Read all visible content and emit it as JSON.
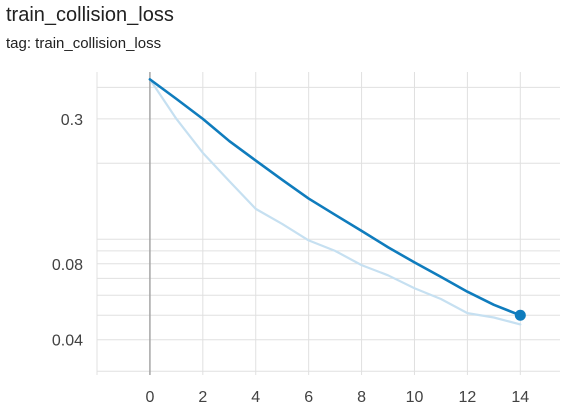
{
  "card": {
    "title": "train_collision_loss",
    "tag_text": "tag: train_collision_loss"
  },
  "chart_data": {
    "type": "line",
    "title": "train_collision_loss",
    "xlabel": "",
    "ylabel": "",
    "y_scale": "log",
    "xlim": [
      -2,
      15.5
    ],
    "ylim": [
      0.029,
      0.46
    ],
    "x_ticks": [
      0,
      2,
      4,
      6,
      8,
      10,
      12,
      14
    ],
    "y_tick_labels": [
      {
        "value": 0.3,
        "label": "0.3"
      },
      {
        "value": 0.08,
        "label": "0.08"
      },
      {
        "value": 0.04,
        "label": "0.04"
      }
    ],
    "grid": true,
    "legend": "none",
    "series": [
      {
        "role": "raw",
        "color": "#c6e0f1",
        "x": [
          0,
          1,
          2,
          3,
          4,
          5,
          6,
          7,
          8,
          9,
          10,
          11,
          12,
          13,
          14
        ],
        "y": [
          0.43,
          0.3,
          0.22,
          0.17,
          0.132,
          0.115,
          0.099,
          0.09,
          0.079,
          0.072,
          0.064,
          0.058,
          0.051,
          0.049,
          0.046
        ]
      },
      {
        "role": "smoothed",
        "color": "#0f7cbd",
        "x": [
          0,
          1,
          2,
          3,
          4,
          5,
          6,
          7,
          8,
          9,
          10,
          11,
          12,
          13,
          14
        ],
        "y": [
          0.43,
          0.36,
          0.3,
          0.245,
          0.205,
          0.172,
          0.145,
          0.125,
          0.108,
          0.093,
          0.081,
          0.071,
          0.062,
          0.055,
          0.05
        ]
      }
    ],
    "highlight_point": {
      "x": 14,
      "y": 0.05,
      "color": "#0f7cbd"
    }
  },
  "style": {
    "grid_color": "#e0e0e0",
    "axis_color": "#a6a6a6",
    "label_color": "#424242"
  }
}
